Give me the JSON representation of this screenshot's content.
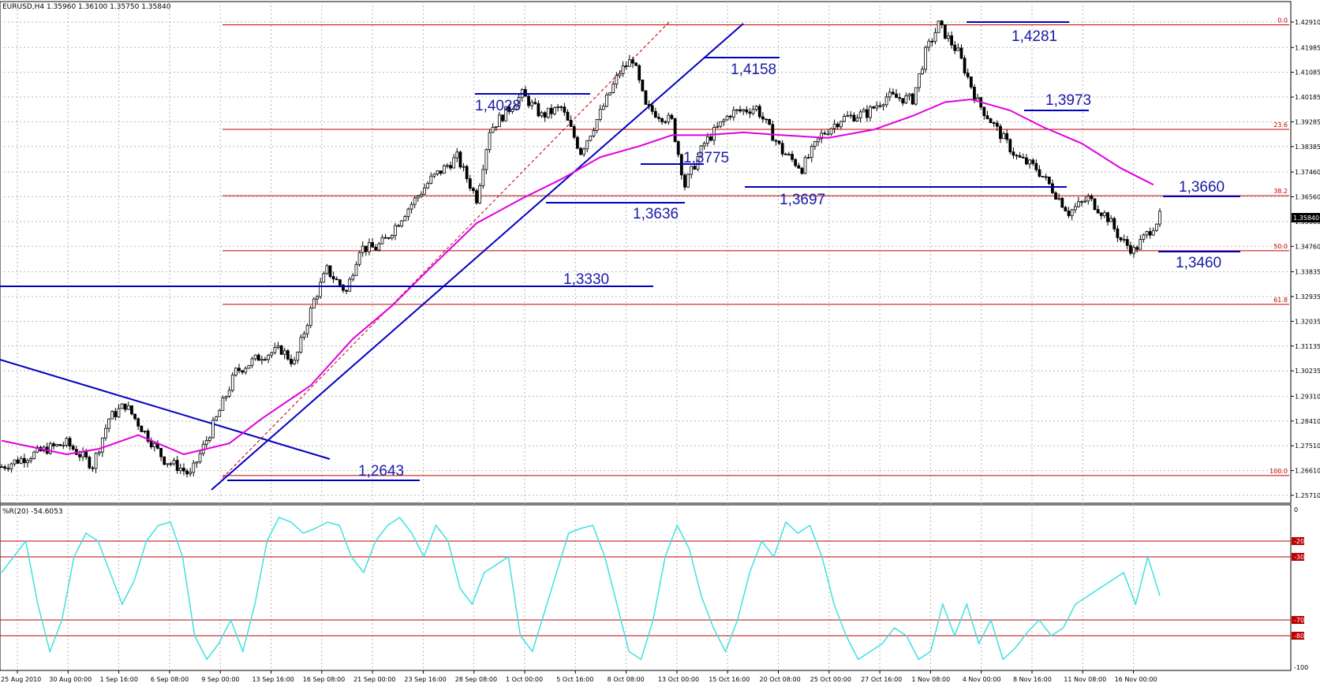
{
  "header": {
    "symbol_info": "EURUSD,H4  1.35960 1.36100 1.35750 1.35840",
    "osc_info": "%R(20) -54.6053"
  },
  "colors": {
    "candle": "#000000",
    "ma": "#e000e0",
    "trend": "#0000c0",
    "fib": "#c00000",
    "osc": "#40e0e0",
    "grid": "#b0b0b0"
  },
  "chart_data": [
    {
      "type": "candlestick",
      "title": "",
      "ylim": [
        1.2571,
        1.4291
      ],
      "x_tick_labels": [
        "25 Aug 2010",
        "30 Aug 00:00",
        "1 Sep 16:00",
        "6 Sep 08:00",
        "9 Sep 00:00",
        "13 Sep 16:00",
        "16 Sep 08:00",
        "21 Sep 00:00",
        "23 Sep 16:00",
        "28 Sep 08:00",
        "1 Oct 00:00",
        "5 Oct 16:00",
        "8 Oct 08:00",
        "13 Oct 00:00",
        "15 Oct 16:00",
        "20 Oct 08:00",
        "25 Oct 00:00",
        "27 Oct 16:00",
        "1 Nov 08:00",
        "4 Nov 00:00",
        "8 Nov 16:00",
        "11 Nov 08:00",
        "16 Nov 00:00"
      ],
      "y_tick_labels": [
        "1.42910",
        "1.41985",
        "1.41085",
        "1.40185",
        "1.39285",
        "1.38385",
        "1.37460",
        "1.36560",
        "1.35660",
        "1.34760",
        "1.33835",
        "1.32935",
        "1.32035",
        "1.31135",
        "1.30235",
        "1.29310",
        "1.28410",
        "1.27510",
        "1.26610",
        "1.25710"
      ],
      "current_price": "1.35840",
      "fib_levels": [
        {
          "label": "0.0",
          "price": 1.4281
        },
        {
          "label": "23.6",
          "price": 1.3901
        },
        {
          "label": "38.2",
          "price": 1.366
        },
        {
          "label": "50.0",
          "price": 1.346
        },
        {
          "label": "61.8",
          "price": 1.3265
        },
        {
          "label": "100.0",
          "price": 1.2643
        }
      ],
      "level_labels": [
        "1,4281",
        "1,4158",
        "1,4028",
        "1,3973",
        "1,3775",
        "1,3697",
        "1,3660",
        "1,3636",
        "1,3460",
        "1,3330",
        "1,2643"
      ],
      "price_path": [
        [
          0,
          1.2675
        ],
        [
          14,
          1.274
        ],
        [
          20,
          1.276
        ],
        [
          28,
          1.268
        ],
        [
          33,
          1.285
        ],
        [
          38,
          1.29
        ],
        [
          44,
          1.28
        ],
        [
          50,
          1.27
        ],
        [
          55,
          1.267
        ],
        [
          58,
          1.2643
        ],
        [
          66,
          1.285
        ],
        [
          72,
          1.302
        ],
        [
          80,
          1.308
        ],
        [
          86,
          1.31
        ],
        [
          90,
          1.305
        ],
        [
          96,
          1.328
        ],
        [
          100,
          1.339
        ],
        [
          106,
          1.331
        ],
        [
          110,
          1.347
        ],
        [
          115,
          1.347
        ],
        [
          118,
          1.35
        ],
        [
          124,
          1.36
        ],
        [
          132,
          1.372
        ],
        [
          140,
          1.38
        ],
        [
          146,
          1.365
        ],
        [
          150,
          1.39
        ],
        [
          160,
          1.4028
        ],
        [
          166,
          1.395
        ],
        [
          172,
          1.398
        ],
        [
          178,
          1.382
        ],
        [
          184,
          1.396
        ],
        [
          190,
          1.411
        ],
        [
          194,
          1.4158
        ],
        [
          198,
          1.398
        ],
        [
          206,
          1.393
        ],
        [
          210,
          1.3697
        ],
        [
          216,
          1.385
        ],
        [
          224,
          1.396
        ],
        [
          232,
          1.398
        ],
        [
          240,
          1.382
        ],
        [
          246,
          1.376
        ],
        [
          252,
          1.388
        ],
        [
          258,
          1.394
        ],
        [
          266,
          1.396
        ],
        [
          272,
          1.402
        ],
        [
          280,
          1.401
        ],
        [
          284,
          1.418
        ],
        [
          288,
          1.4281
        ],
        [
          294,
          1.418
        ],
        [
          300,
          1.4
        ],
        [
          306,
          1.39
        ],
        [
          312,
          1.38
        ],
        [
          318,
          1.376
        ],
        [
          322,
          1.37
        ],
        [
          328,
          1.36
        ],
        [
          334,
          1.365
        ],
        [
          340,
          1.358
        ],
        [
          344,
          1.35
        ],
        [
          348,
          1.346
        ],
        [
          352,
          1.352
        ],
        [
          356,
          1.3584
        ]
      ],
      "ma_path": [
        [
          0,
          1.277
        ],
        [
          20,
          1.272
        ],
        [
          30,
          1.274
        ],
        [
          42,
          1.279
        ],
        [
          56,
          1.272
        ],
        [
          70,
          1.276
        ],
        [
          80,
          1.285
        ],
        [
          95,
          1.297
        ],
        [
          108,
          1.314
        ],
        [
          120,
          1.326
        ],
        [
          132,
          1.34
        ],
        [
          146,
          1.356
        ],
        [
          160,
          1.365
        ],
        [
          172,
          1.372
        ],
        [
          184,
          1.38
        ],
        [
          196,
          1.384
        ],
        [
          206,
          1.388
        ],
        [
          216,
          1.388
        ],
        [
          228,
          1.389
        ],
        [
          240,
          1.388
        ],
        [
          254,
          1.387
        ],
        [
          268,
          1.39
        ],
        [
          280,
          1.395
        ],
        [
          290,
          1.4
        ],
        [
          298,
          1.401
        ],
        [
          310,
          1.397
        ],
        [
          320,
          1.391
        ],
        [
          332,
          1.385
        ],
        [
          344,
          1.376
        ],
        [
          354,
          1.37
        ]
      ]
    },
    {
      "type": "line",
      "title": "",
      "ylim": [
        -100,
        0
      ],
      "y_tick_labels": [
        "0",
        "-20",
        "-30",
        "-70",
        "-80",
        "-100"
      ],
      "levels": [
        -20,
        -30,
        -70,
        -80
      ],
      "series": [
        {
          "values": [
            -40,
            -30,
            -20,
            -60,
            -90,
            -70,
            -30,
            -15,
            -20,
            -40,
            -60,
            -45,
            -20,
            -10,
            -8,
            -30,
            -80,
            -95,
            -85,
            -70,
            -90,
            -60,
            -20,
            -5,
            -8,
            -15,
            -12,
            -8,
            -10,
            -30,
            -40,
            -20,
            -10,
            -5,
            -15,
            -30,
            -10,
            -20,
            -50,
            -60,
            -40,
            -35,
            -30,
            -80,
            -90,
            -65,
            -40,
            -15,
            -12,
            -10,
            -30,
            -60,
            -90,
            -95,
            -70,
            -30,
            -10,
            -25,
            -55,
            -75,
            -90,
            -70,
            -40,
            -20,
            -30,
            -8,
            -15,
            -10,
            -30,
            -60,
            -80,
            -95,
            -90,
            -85,
            -75,
            -80,
            -95,
            -90,
            -60,
            -80,
            -60,
            -85,
            -70,
            -95,
            -88,
            -78,
            -70,
            -80,
            -75,
            -60,
            -55,
            -50,
            -45,
            -40,
            -60,
            -30,
            -54.6
          ]
        }
      ]
    }
  ]
}
